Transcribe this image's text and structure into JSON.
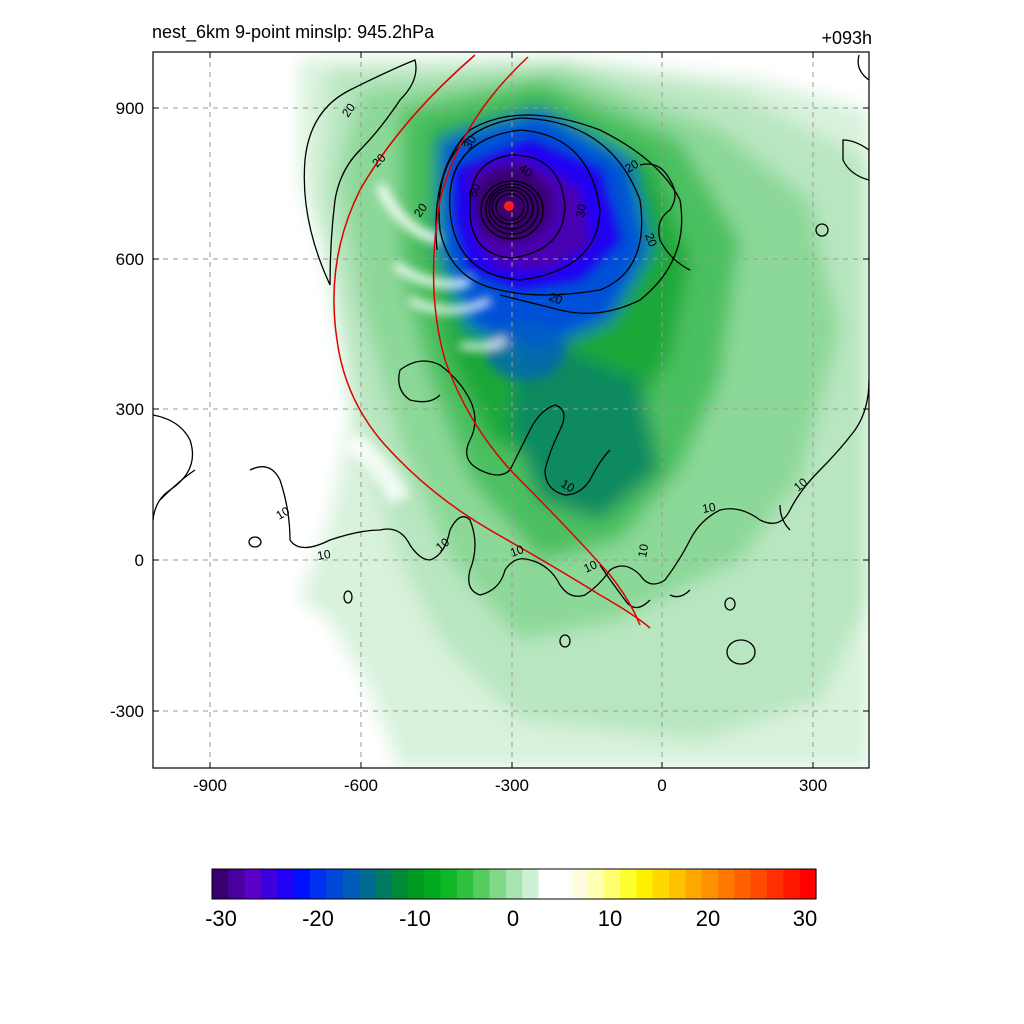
{
  "header": {
    "left_title": "nest_6km  9-point minslp: 945.2hPa",
    "right_title": "+093h"
  },
  "map": {
    "x_ticks": [
      "-900",
      "-600",
      "-300",
      "0",
      "300"
    ],
    "y_ticks": [
      "900",
      "600",
      "300",
      "0",
      "-300"
    ],
    "contour_labels": [
      "20",
      "20",
      "20",
      "20",
      "20",
      "20",
      "30",
      "30",
      "40",
      "50",
      "10",
      "10",
      "10",
      "10",
      "10",
      "10",
      "10",
      "10",
      "10"
    ],
    "center_marker_color": "#ff1a1a",
    "contour_color": "#000000",
    "front_line_color": "#e00000"
  },
  "colorbar": {
    "tick_labels": [
      "-30",
      "-20",
      "-10",
      "0",
      "10",
      "20",
      "30"
    ],
    "colors": [
      "#3a0070",
      "#4a00a0",
      "#5a00c8",
      "#3f00e0",
      "#2200f5",
      "#0010ff",
      "#0030f0",
      "#0048d8",
      "#005cb8",
      "#006a90",
      "#007a60",
      "#008a38",
      "#009a20",
      "#00aa20",
      "#10b828",
      "#30c040",
      "#55cc60",
      "#80d888",
      "#a8e4b0",
      "#ccf0d4",
      "#ffffff",
      "#ffffff",
      "#fffde0",
      "#ffffb0",
      "#ffff70",
      "#ffff30",
      "#fff000",
      "#ffd800",
      "#ffc000",
      "#ffa800",
      "#ff9000",
      "#ff7800",
      "#ff6000",
      "#ff4800",
      "#ff3000",
      "#ff1800",
      "#ff0000"
    ]
  }
}
